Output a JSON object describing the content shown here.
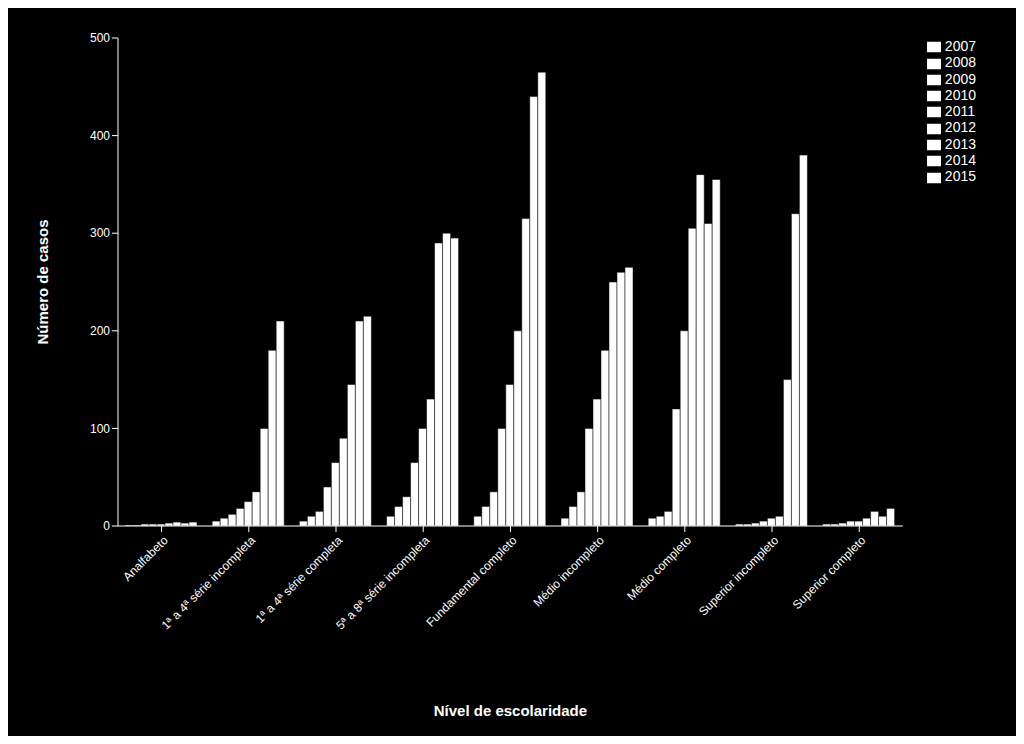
{
  "chart_data": {
    "type": "bar",
    "categories": [
      "Analfabeto",
      "1ª a 4ª série incompleta",
      "1ª a 4ª série completa",
      "5ª a 8ª série incompleta",
      "Fundamental completo",
      "Médio incompleto",
      "Médio completo",
      "Superior incompleto",
      "Superior completo"
    ],
    "series": [
      {
        "name": "2007",
        "color": "#ffffff",
        "values": [
          1,
          5,
          5,
          10,
          10,
          8,
          8,
          2,
          2
        ]
      },
      {
        "name": "2008",
        "color": "#ffffff",
        "values": [
          1,
          8,
          10,
          20,
          20,
          20,
          10,
          2,
          2
        ]
      },
      {
        "name": "2009",
        "color": "#ffffff",
        "values": [
          2,
          12,
          15,
          30,
          35,
          35,
          15,
          3,
          3
        ]
      },
      {
        "name": "2010",
        "color": "#ffffff",
        "values": [
          2,
          18,
          40,
          65,
          100,
          100,
          120,
          5,
          5
        ]
      },
      {
        "name": "2011",
        "color": "#ffffff",
        "values": [
          2,
          25,
          65,
          100,
          145,
          130,
          200,
          8,
          5
        ]
      },
      {
        "name": "2012",
        "color": "#ffffff",
        "values": [
          3,
          35,
          90,
          130,
          200,
          180,
          305,
          10,
          8
        ]
      },
      {
        "name": "2013",
        "color": "#ffffff",
        "values": [
          4,
          100,
          145,
          290,
          315,
          250,
          360,
          150,
          15
        ]
      },
      {
        "name": "2014",
        "color": "#ffffff",
        "values": [
          3,
          180,
          210,
          300,
          440,
          260,
          310,
          320,
          10
        ]
      },
      {
        "name": "2015",
        "color": "#ffffff",
        "values": [
          4,
          210,
          215,
          295,
          465,
          265,
          355,
          380,
          18
        ]
      }
    ],
    "xlabel": "Nível de escolaridade",
    "ylabel": "Número de casos",
    "ylim": [
      0,
      500
    ],
    "yticks": [
      0,
      100,
      200,
      300,
      400,
      500
    ],
    "grid": false,
    "legend": "right"
  }
}
